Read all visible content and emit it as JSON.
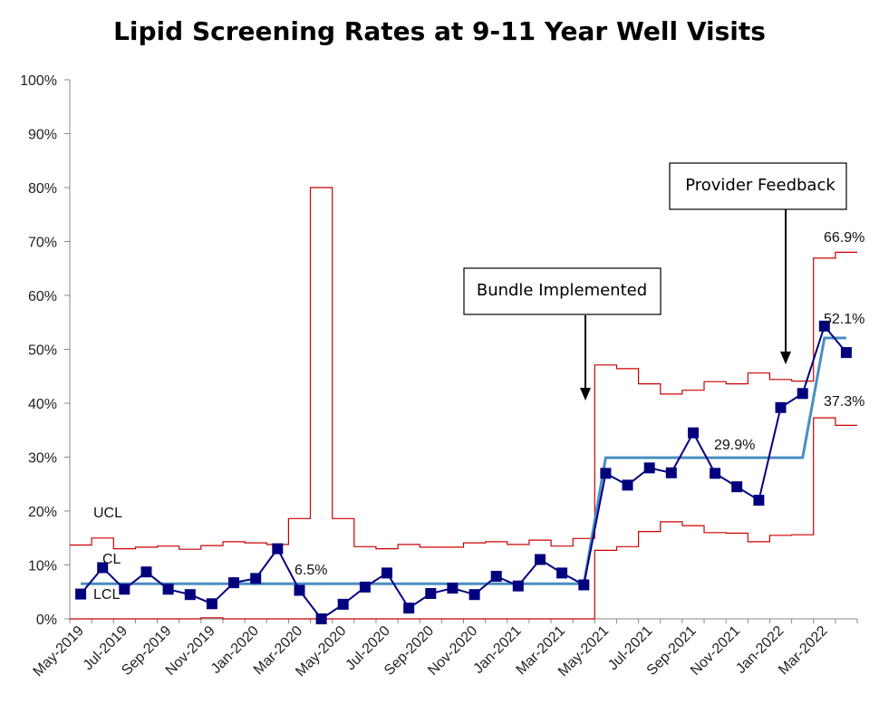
{
  "chart_data": {
    "type": "line",
    "title": "Lipid Screening Rates at  9-11 Year Well Visits",
    "xlabel": "",
    "ylabel": "",
    "ylim": [
      0,
      100
    ],
    "y_ticks": [
      "0%",
      "10%",
      "20%",
      "30%",
      "40%",
      "50%",
      "60%",
      "70%",
      "80%",
      "90%",
      "100%"
    ],
    "x_tick_labels": [
      "May-2019",
      "Jul-2019",
      "Sep-2019",
      "Nov-2019",
      "Jan-2020",
      "Mar-2020",
      "May-2020",
      "Jul-2020",
      "Sep-2020",
      "Nov-2020",
      "Jan-2021",
      "Mar-2021",
      "May-2021",
      "Jul-2021",
      "Sep-2021",
      "Nov-2021",
      "Jan-2022",
      "Mar-2022"
    ],
    "categories": [
      "May-2019",
      "Jun-2019",
      "Jul-2019",
      "Aug-2019",
      "Sep-2019",
      "Oct-2019",
      "Nov-2019",
      "Dec-2019",
      "Jan-2020",
      "Feb-2020",
      "Mar-2020",
      "Apr-2020",
      "May-2020",
      "Jun-2020",
      "Jul-2020",
      "Aug-2020",
      "Sep-2020",
      "Oct-2020",
      "Nov-2020",
      "Dec-2020",
      "Jan-2021",
      "Feb-2021",
      "Mar-2021",
      "Apr-2021",
      "May-2021",
      "Jun-2021",
      "Jul-2021",
      "Aug-2021",
      "Sep-2021",
      "Oct-2021",
      "Nov-2021",
      "Dec-2021",
      "Jan-2022",
      "Feb-2022",
      "Mar-2022",
      "Apr-2022"
    ],
    "series": [
      {
        "values": [
          4.6,
          9.5,
          5.5,
          8.7,
          5.5,
          4.5,
          2.8,
          6.7,
          7.5,
          13.0,
          5.3,
          0.0,
          2.7,
          5.9,
          8.5,
          2.0,
          4.7,
          5.7,
          4.5,
          7.9,
          6.1,
          11.0,
          8.5,
          6.3,
          27.0,
          24.8,
          28.0,
          27.1,
          34.5,
          27.0,
          24.5,
          22.0,
          39.2,
          41.8,
          54.3,
          49.4
        ],
        "color": "#00007f"
      },
      {
        "name": "CL",
        "values": [
          6.5,
          6.5,
          6.5,
          6.5,
          6.5,
          6.5,
          6.5,
          6.5,
          6.5,
          6.5,
          6.5,
          6.5,
          6.5,
          6.5,
          6.5,
          6.5,
          6.5,
          6.5,
          6.5,
          6.5,
          6.5,
          6.5,
          6.5,
          6.5,
          29.9,
          29.9,
          29.9,
          29.9,
          29.9,
          29.9,
          29.9,
          29.9,
          29.9,
          29.9,
          52.1,
          52.1
        ],
        "color": "#4a8ec2"
      },
      {
        "name": "UCL",
        "values": [
          13.7,
          15.0,
          13.0,
          13.3,
          13.5,
          12.9,
          13.6,
          14.3,
          14.1,
          13.8,
          18.6,
          80.0,
          18.6,
          13.4,
          13.0,
          13.8,
          13.3,
          13.3,
          14.1,
          14.3,
          13.8,
          14.6,
          13.5,
          14.9,
          47.1,
          46.4,
          43.6,
          41.7,
          42.4,
          44.0,
          43.6,
          45.6,
          44.4,
          44.1,
          66.9,
          68.0
        ],
        "color": "#cc0000"
      },
      {
        "name": "LCL",
        "values": [
          0,
          0,
          0,
          0,
          0,
          0,
          0.2,
          0,
          0,
          0,
          0,
          0,
          0,
          0,
          0,
          0,
          0,
          0,
          0,
          0,
          0,
          0,
          0,
          0,
          12.7,
          13.4,
          16.2,
          18.0,
          17.3,
          16.0,
          15.9,
          14.3,
          15.5,
          15.6,
          37.3,
          35.9
        ],
        "color": "#cc0000"
      }
    ],
    "annotations": {
      "ucl_label": "UCL",
      "cl_label": "CL",
      "lcl_label": "LCL",
      "cl_phase1": "6.5%",
      "cl_phase2": "29.9%",
      "ucl_phase3": "66.9%",
      "cl_phase3": "52.1%",
      "lcl_phase3": "37.3%",
      "box1": "Bundle Implemented",
      "box2": "Provider Feedback"
    },
    "grid": false,
    "legend": "none"
  }
}
